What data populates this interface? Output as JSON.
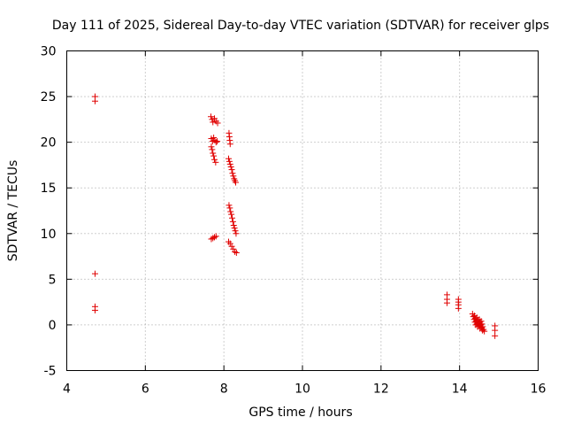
{
  "chart_data": {
    "type": "scatter",
    "title": "Day 111 of 2025, Sidereal Day-to-day VTEC variation (SDTVAR) for receiver glps",
    "xlabel": "GPS time / hours",
    "ylabel": "SDTVAR / TECUs",
    "xlim": [
      4,
      16
    ],
    "ylim": [
      -5,
      30
    ],
    "xticks": [
      "4",
      "6",
      "8",
      "10",
      "12",
      "14",
      "16"
    ],
    "yticks": [
      "-5",
      "0",
      "5",
      "10",
      "15",
      "20",
      "25",
      "30"
    ],
    "grid": true,
    "marker": "plus",
    "color": "#e00000",
    "points": [
      [
        4.72,
        25.0
      ],
      [
        4.72,
        24.5
      ],
      [
        4.72,
        5.6
      ],
      [
        4.72,
        2.0
      ],
      [
        4.72,
        1.6
      ],
      [
        7.67,
        22.8
      ],
      [
        7.7,
        22.5
      ],
      [
        7.72,
        22.2
      ],
      [
        7.76,
        22.6
      ],
      [
        7.8,
        22.3
      ],
      [
        7.84,
        22.1
      ],
      [
        7.68,
        20.4
      ],
      [
        7.71,
        20.1
      ],
      [
        7.74,
        20.5
      ],
      [
        7.77,
        20.2
      ],
      [
        7.8,
        20.0
      ],
      [
        7.83,
        20.1
      ],
      [
        7.68,
        19.5
      ],
      [
        7.7,
        19.2
      ],
      [
        7.72,
        18.8
      ],
      [
        7.74,
        18.5
      ],
      [
        7.76,
        18.1
      ],
      [
        7.79,
        17.8
      ],
      [
        8.13,
        21.0
      ],
      [
        8.14,
        20.6
      ],
      [
        8.15,
        20.2
      ],
      [
        8.16,
        19.8
      ],
      [
        8.12,
        18.2
      ],
      [
        8.14,
        17.9
      ],
      [
        8.16,
        17.6
      ],
      [
        8.18,
        17.3
      ],
      [
        8.2,
        17.0
      ],
      [
        8.22,
        16.6
      ],
      [
        8.24,
        16.3
      ],
      [
        8.26,
        16.0
      ],
      [
        8.28,
        15.8
      ],
      [
        8.3,
        15.6
      ],
      [
        8.13,
        13.1
      ],
      [
        8.15,
        12.8
      ],
      [
        8.17,
        12.4
      ],
      [
        8.19,
        12.1
      ],
      [
        8.21,
        11.7
      ],
      [
        8.23,
        11.3
      ],
      [
        8.25,
        10.9
      ],
      [
        8.27,
        10.6
      ],
      [
        8.29,
        10.3
      ],
      [
        8.31,
        10.0
      ],
      [
        7.68,
        9.4
      ],
      [
        7.72,
        9.5
      ],
      [
        7.76,
        9.6
      ],
      [
        7.8,
        9.7
      ],
      [
        8.12,
        9.1
      ],
      [
        8.16,
        8.9
      ],
      [
        8.2,
        8.6
      ],
      [
        8.24,
        8.3
      ],
      [
        8.28,
        8.0
      ],
      [
        8.32,
        7.9
      ],
      [
        13.68,
        3.3
      ],
      [
        13.68,
        2.8
      ],
      [
        13.68,
        2.4
      ],
      [
        13.97,
        2.8
      ],
      [
        13.97,
        2.5
      ],
      [
        13.97,
        2.2
      ],
      [
        13.97,
        1.8
      ],
      [
        14.33,
        1.2
      ],
      [
        14.35,
        0.9
      ],
      [
        14.37,
        0.6
      ],
      [
        14.39,
        0.3
      ],
      [
        14.41,
        0.0
      ],
      [
        14.38,
        1.0
      ],
      [
        14.4,
        0.7
      ],
      [
        14.42,
        0.4
      ],
      [
        14.44,
        0.1
      ],
      [
        14.46,
        -0.2
      ],
      [
        14.44,
        0.8
      ],
      [
        14.46,
        0.5
      ],
      [
        14.48,
        0.2
      ],
      [
        14.5,
        -0.1
      ],
      [
        14.52,
        -0.4
      ],
      [
        14.5,
        0.6
      ],
      [
        14.52,
        0.3
      ],
      [
        14.54,
        0.0
      ],
      [
        14.56,
        -0.3
      ],
      [
        14.58,
        -0.6
      ],
      [
        14.55,
        0.4
      ],
      [
        14.57,
        0.1
      ],
      [
        14.59,
        -0.2
      ],
      [
        14.61,
        -0.5
      ],
      [
        14.63,
        -0.7
      ],
      [
        14.9,
        -0.1
      ],
      [
        14.9,
        -0.6
      ],
      [
        14.9,
        -1.2
      ]
    ]
  }
}
